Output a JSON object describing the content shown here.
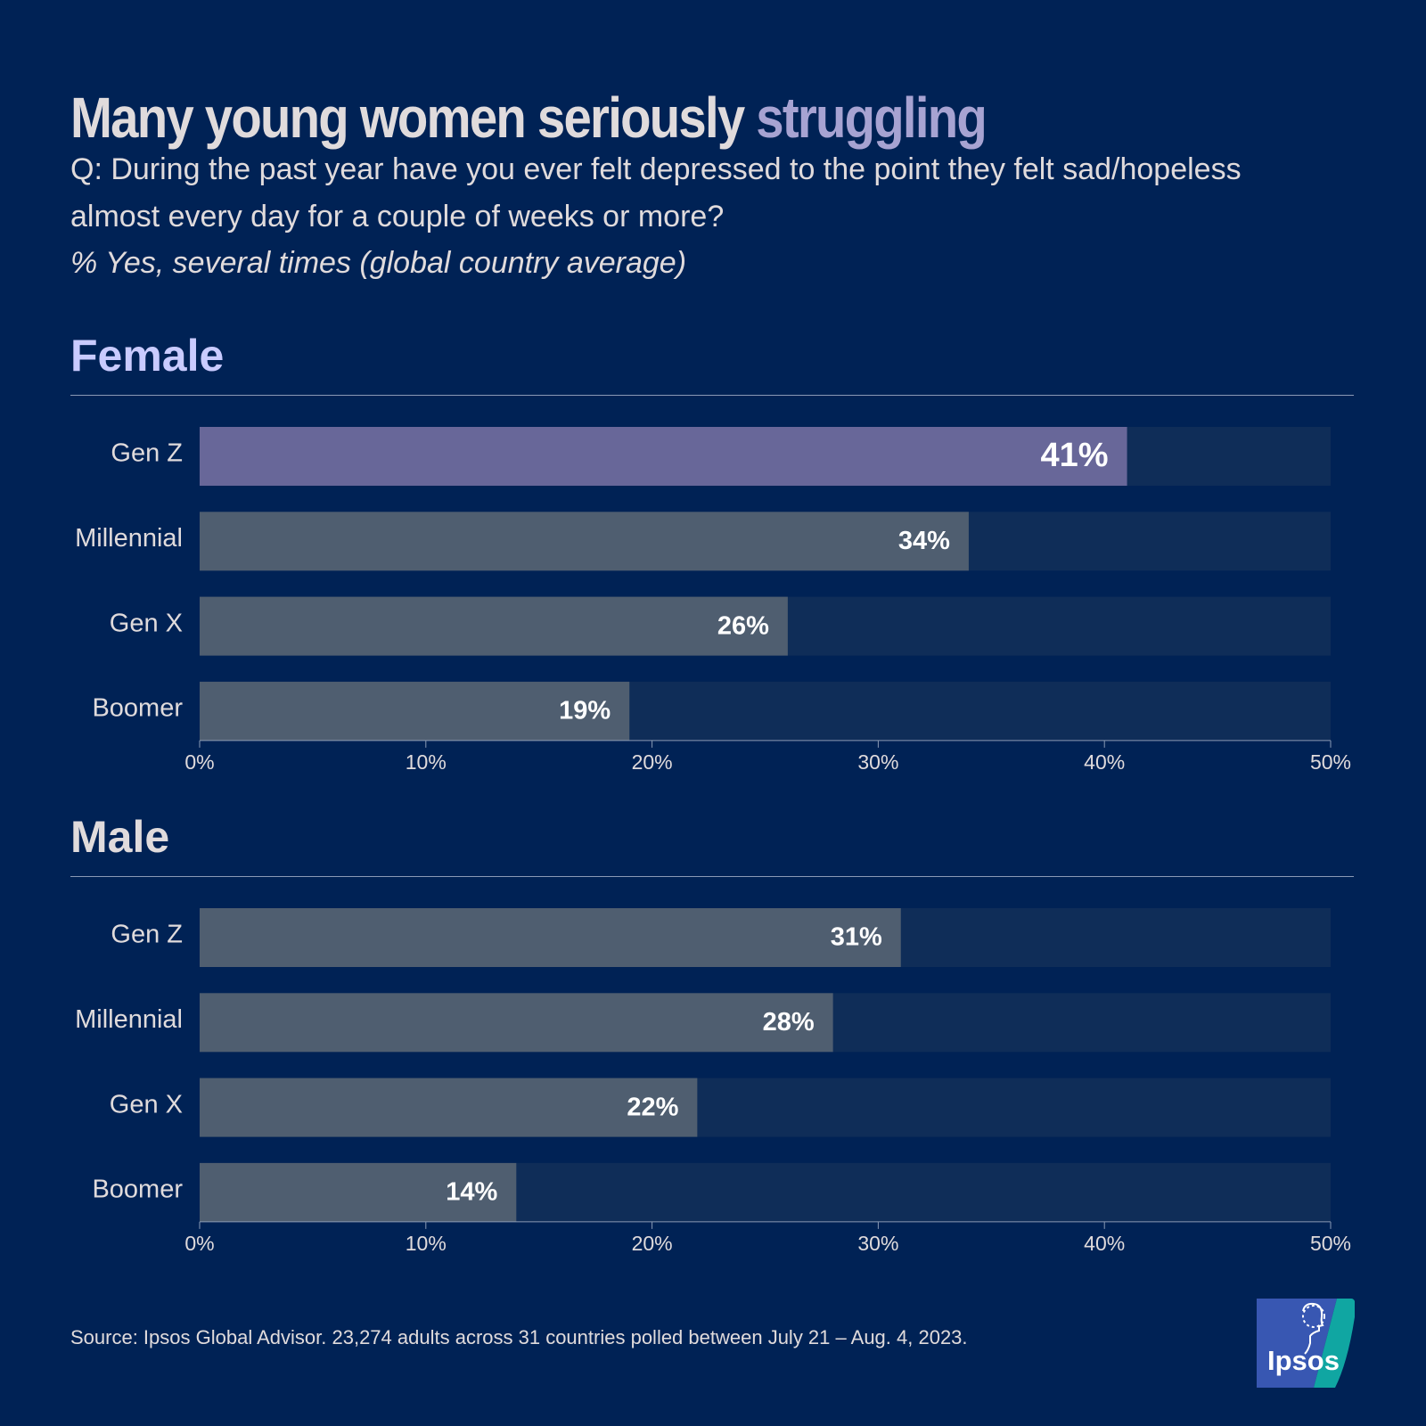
{
  "colors": {
    "background": "#002255",
    "bar_track": "#0F2D58",
    "bar_highlight": "#686799",
    "bar_default": "#4F5E70",
    "text_primary": "#E0DBDC",
    "accent": "#A7A3D2",
    "female_heading": "#C9CBFF",
    "value_label": "#FFFFFF",
    "axis_tick": "#E0DBDC",
    "axis_line": "#8A9AB5",
    "logo_blue": "#3857B2",
    "logo_teal": "#10A6A2",
    "logo_text": "#FFFFFF"
  },
  "header": {
    "title_main": "Many young women seriously ",
    "title_accent": "struggling",
    "question": "Q: During the past year have you ever felt depressed to the point they felt sad/hopeless almost every day for a couple of weeks or more?",
    "subtitle": "% Yes, several times (global country average)"
  },
  "chart_data": [
    {
      "type": "bar",
      "orientation": "horizontal",
      "title": "Female",
      "categories": [
        "Gen Z",
        "Millennial",
        "Gen X",
        "Boomer"
      ],
      "values": [
        41,
        34,
        26,
        19
      ],
      "value_labels": [
        "41%",
        "34%",
        "26%",
        "19%"
      ],
      "highlight_index": 0,
      "xlim": [
        0,
        50
      ],
      "xticks": [
        0,
        10,
        20,
        30,
        40,
        50
      ],
      "xtick_labels": [
        "0%",
        "10%",
        "20%",
        "30%",
        "40%",
        "50%"
      ],
      "xlabel": "",
      "ylabel": "",
      "grid": false
    },
    {
      "type": "bar",
      "orientation": "horizontal",
      "title": "Male",
      "categories": [
        "Gen Z",
        "Millennial",
        "Gen X",
        "Boomer"
      ],
      "values": [
        31,
        28,
        22,
        14
      ],
      "value_labels": [
        "31%",
        "28%",
        "22%",
        "14%"
      ],
      "highlight_index": -1,
      "xlim": [
        0,
        50
      ],
      "xticks": [
        0,
        10,
        20,
        30,
        40,
        50
      ],
      "xtick_labels": [
        "0%",
        "10%",
        "20%",
        "30%",
        "40%",
        "50%"
      ],
      "xlabel": "",
      "ylabel": "",
      "grid": false
    }
  ],
  "footer": {
    "source": "Source: Ipsos Global Advisor. 23,274 adults across 31 countries polled between July 21 – Aug. 4, 2023.",
    "logo_text": "Ipsos"
  }
}
